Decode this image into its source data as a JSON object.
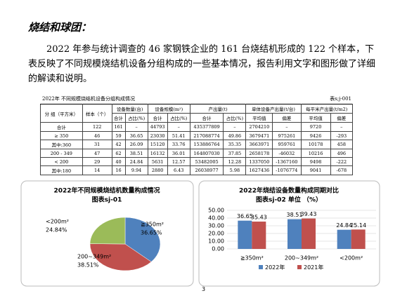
{
  "heading": "烧结和球团：",
  "paragraph": "2022 年参与统计调查的 46 家钢铁企业的 161 台烧结机形成的 122 个样本，下表反映了不同规模烧结机设备分组构成的一些基本情况，报告利用文字和图形做了详细的解读和说明。",
  "table": {
    "caption": "2022年 不同规模烧结机设备分组构成情况",
    "code": "表s;j-001",
    "groups": [
      "分 组（平方米）",
      "样本（个）",
      "设备数量(台)",
      "设备规模(m²)",
      "产出量(t)",
      "单体设备产出量(t/台)",
      "每平米产出量(t/m2)"
    ],
    "subheaders": [
      "合计",
      "占比(%)",
      "合计",
      "占比(%)",
      "合计",
      "占比(%)",
      "平均值",
      "偏差",
      "平均值",
      "偏差"
    ],
    "rows": [
      [
        "合计",
        "122",
        "161",
        "–",
        "44793",
        "–",
        "435377809",
        "–",
        "2704210",
        "–",
        "9720",
        "–"
      ],
      [
        "≥ 350",
        "46",
        "59",
        "36.65",
        "23030",
        "51.41",
        "217088774",
        "49.86",
        "3679471",
        "975261",
        "9426",
        "-293"
      ],
      [
        "其中:360",
        "31",
        "42",
        "26.09",
        "15120",
        "33.76",
        "153886764",
        "35.35",
        "3663971",
        "959761",
        "10178",
        "458"
      ],
      [
        "200 - 349",
        "47",
        "62",
        "38.51",
        "16132",
        "36.01",
        "164807030",
        "37.85",
        "2658178",
        "-46032",
        "10216",
        "496"
      ],
      [
        "< 200",
        "29",
        "40",
        "24.84",
        "5631",
        "12.57",
        "53482005",
        "12.28",
        "1337050",
        "-1367160",
        "9498",
        "-222"
      ],
      [
        "其中:180",
        "14",
        "16",
        "9.94",
        "2880",
        "6.43",
        "26038977",
        "5.98",
        "1627436",
        "-1076774",
        "9041",
        "-678"
      ]
    ]
  },
  "chart_data": [
    {
      "type": "pie",
      "title": "2022年不同规模烧结机数量构成情况",
      "subtitle": "图表sj-01",
      "categories": [
        "≧350m²",
        "200~349m²",
        "<200m²"
      ],
      "values": [
        36.65,
        38.51,
        24.84
      ],
      "value_labels": [
        "36.65%",
        "38.51%",
        "24.84%"
      ],
      "colors": [
        "#4f81bd",
        "#c0504d",
        "#9bbb59"
      ]
    },
    {
      "type": "bar",
      "title": "2022年烧结设备数量构成同期对比",
      "subtitle": "图表sj-02  单位 （%）",
      "categories": [
        "≧350m²",
        "200~349m²",
        "<200m²"
      ],
      "series": [
        {
          "name": "2022年",
          "color": "#4f81bd",
          "values": [
            36.65,
            38.51,
            24.84
          ]
        },
        {
          "name": "2021年",
          "color": "#c0504d",
          "values": [
            35.43,
            39.43,
            25.14
          ]
        }
      ],
      "ylim": [
        0,
        50
      ],
      "yticks": [
        {
          "value": 0,
          "label": "0.00"
        },
        {
          "value": 10,
          "label": "10.00"
        },
        {
          "value": 20,
          "label": "20.00"
        },
        {
          "value": 30,
          "label": "30.00"
        },
        {
          "value": 40,
          "label": "40.00"
        },
        {
          "value": 50,
          "label": "50.00"
        }
      ],
      "grid": true
    }
  ],
  "page_number": "3"
}
